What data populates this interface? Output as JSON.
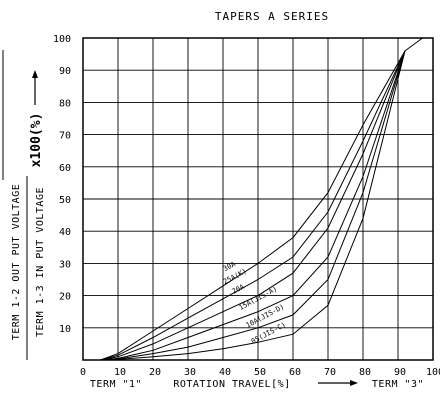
{
  "chart_data": {
    "type": "line",
    "title": "TAPERS A SERIES",
    "xlabel": "ROTATION TRAVEL[%]",
    "x_start_label": "TERM \"1\"",
    "x_end_label": "TERM \"3\"",
    "ylabel_numerator": "TERM 1-2 OUT PUT VOLTAGE",
    "ylabel_denominator": "TERM 1-3 IN PUT VOLTAGE",
    "ylabel_multiplier": "x100(%)",
    "x_ticks": [
      "0",
      "10",
      "20",
      "30",
      "40",
      "50",
      "60",
      "70",
      "80",
      "90",
      "100"
    ],
    "y_ticks": [
      "10",
      "20",
      "30",
      "40",
      "50",
      "60",
      "70",
      "80",
      "90",
      "100"
    ],
    "xlim": [
      0,
      100
    ],
    "ylim": [
      0,
      100
    ],
    "grid": true,
    "series": [
      {
        "name": "30A",
        "x": [
          5,
          10,
          20,
          30,
          40,
          50,
          60,
          70,
          80,
          92
        ],
        "y": [
          0,
          2,
          9,
          16,
          23,
          30,
          38,
          52,
          73,
          96
        ]
      },
      {
        "name": "25A(K)",
        "x": [
          5,
          10,
          20,
          30,
          40,
          50,
          60,
          70,
          80,
          92
        ],
        "y": [
          0,
          1.5,
          7,
          13,
          19,
          25,
          32,
          46,
          68,
          96
        ]
      },
      {
        "name": "20A",
        "x": [
          5,
          10,
          20,
          30,
          40,
          50,
          60,
          70,
          80,
          92
        ],
        "y": [
          0,
          1,
          5,
          10,
          15,
          20,
          27,
          41,
          64,
          96
        ]
      },
      {
        "name": "15A(JIS-A)",
        "x": [
          5,
          10,
          20,
          30,
          40,
          50,
          60,
          70,
          80,
          92
        ],
        "y": [
          0,
          0.5,
          3,
          7,
          11,
          15,
          20,
          32,
          57,
          96
        ]
      },
      {
        "name": "10A(JIS-D)",
        "x": [
          5,
          10,
          20,
          30,
          40,
          50,
          60,
          70,
          80,
          92
        ],
        "y": [
          0,
          0.3,
          2,
          4,
          7,
          10,
          14,
          25,
          52,
          96
        ]
      },
      {
        "name": "05(JIS-C)",
        "x": [
          5,
          10,
          20,
          30,
          40,
          50,
          60,
          70,
          80,
          92
        ],
        "y": [
          0,
          0.2,
          1,
          2,
          3.5,
          5.5,
          8,
          17,
          44,
          96
        ]
      }
    ],
    "overall_line": {
      "x": [
        92,
        97
      ],
      "y": [
        96,
        100
      ]
    }
  }
}
